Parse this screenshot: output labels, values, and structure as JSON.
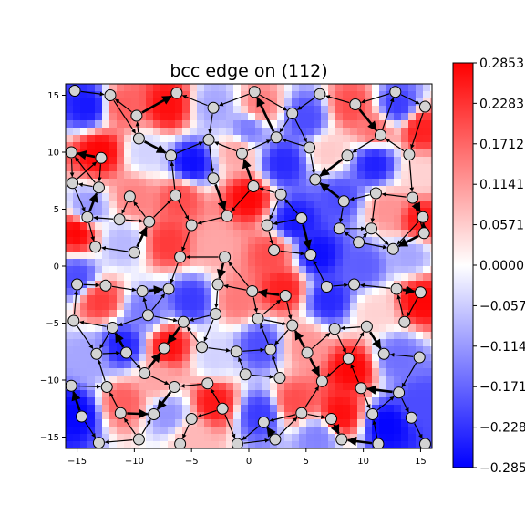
{
  "chart_data": {
    "type": "heatmap",
    "title": "bcc edge on (112)",
    "xlabel": "",
    "ylabel": "",
    "xlim": [
      -16,
      16
    ],
    "ylim": [
      -16,
      16
    ],
    "x_ticks": [
      -15,
      -10,
      -5,
      0,
      5,
      10,
      15
    ],
    "x_tick_labels": [
      "−15",
      "−10",
      "−5",
      "0",
      "5",
      "10",
      "15"
    ],
    "y_ticks": [
      15,
      10,
      5,
      0,
      -5,
      -10,
      -15
    ],
    "y_tick_labels": [
      "15",
      "10",
      "5",
      "0",
      "−5",
      "−10",
      "−15"
    ],
    "colorbar": {
      "cmap": "bwr",
      "vmin": -0.2853,
      "vmax": 0.2853,
      "ticks": [
        0.2853,
        0.2283,
        0.1712,
        0.1141,
        0.0571,
        0.0,
        -0.0571,
        -0.1141,
        -0.1712,
        -0.2283,
        -0.2853
      ],
      "tick_labels": [
        "0.2853",
        "0.2283",
        "0.1712",
        "0.1141",
        "0.0571",
        "0.0000",
        "−0.0571",
        "−0.1141",
        "−0.1712",
        "−0.2283",
        "−0.2853"
      ]
    },
    "colors": {
      "positive": "#ff0000",
      "zero": "#ffffff",
      "negative": "#0000ff",
      "atom_fill": "#d3d3d3",
      "atom_edge": "#000000"
    },
    "grid": false,
    "field_samples": [
      {
        "x": -14,
        "y": 14,
        "v": -0.26
      },
      {
        "x": -11,
        "y": 14,
        "v": 0.18
      },
      {
        "x": -7,
        "y": 14,
        "v": 0.27
      },
      {
        "x": -3,
        "y": 14,
        "v": -0.1
      },
      {
        "x": 1,
        "y": 14,
        "v": 0.15
      },
      {
        "x": 5,
        "y": 13,
        "v": -0.2
      },
      {
        "x": 9,
        "y": 14,
        "v": 0.2
      },
      {
        "x": 13,
        "y": 14,
        "v": -0.22
      },
      {
        "x": 15,
        "y": 12,
        "v": 0.25
      },
      {
        "x": -13,
        "y": 10,
        "v": 0.28
      },
      {
        "x": -9,
        "y": 10,
        "v": -0.05
      },
      {
        "x": -5,
        "y": 9,
        "v": -0.27
      },
      {
        "x": -1,
        "y": 10,
        "v": 0.1
      },
      {
        "x": 3,
        "y": 9,
        "v": -0.24
      },
      {
        "x": 7,
        "y": 10,
        "v": 0.06
      },
      {
        "x": 11,
        "y": 9,
        "v": -0.25
      },
      {
        "x": 15,
        "y": 8,
        "v": 0.05
      },
      {
        "x": -14,
        "y": 5,
        "v": -0.12
      },
      {
        "x": -10,
        "y": 6,
        "v": 0.14
      },
      {
        "x": -6,
        "y": 6,
        "v": 0.2
      },
      {
        "x": 0,
        "y": 6,
        "v": 0.28
      },
      {
        "x": 4,
        "y": 4,
        "v": -0.26
      },
      {
        "x": 8,
        "y": 6,
        "v": -0.2
      },
      {
        "x": 12,
        "y": 5,
        "v": 0.12
      },
      {
        "x": 15,
        "y": 4,
        "v": 0.26
      },
      {
        "x": -15,
        "y": 3,
        "v": 0.28
      },
      {
        "x": -11,
        "y": 2,
        "v": -0.08
      },
      {
        "x": -7,
        "y": 2,
        "v": 0.22
      },
      {
        "x": -3,
        "y": 2,
        "v": 0.1
      },
      {
        "x": 2,
        "y": 1,
        "v": 0.2
      },
      {
        "x": 6,
        "y": 1,
        "v": -0.27
      },
      {
        "x": 10,
        "y": 0,
        "v": -0.18
      },
      {
        "x": 14,
        "y": 1,
        "v": -0.1
      },
      {
        "x": -13,
        "y": -3,
        "v": 0.22
      },
      {
        "x": -9,
        "y": -4,
        "v": -0.15
      },
      {
        "x": -5,
        "y": -3,
        "v": -0.22
      },
      {
        "x": -1,
        "y": -3,
        "v": 0.15
      },
      {
        "x": 3,
        "y": -2,
        "v": 0.25
      },
      {
        "x": 7,
        "y": -3,
        "v": -0.24
      },
      {
        "x": 11,
        "y": -4,
        "v": 0.05
      },
      {
        "x": 15,
        "y": -3,
        "v": 0.28
      },
      {
        "x": -14,
        "y": -8,
        "v": -0.1
      },
      {
        "x": -11,
        "y": -7,
        "v": -0.25
      },
      {
        "x": -7,
        "y": -7,
        "v": 0.27
      },
      {
        "x": -3,
        "y": -8,
        "v": -0.05
      },
      {
        "x": 1,
        "y": -7,
        "v": -0.2
      },
      {
        "x": 5,
        "y": -7,
        "v": 0.12
      },
      {
        "x": 9,
        "y": -9,
        "v": 0.28
      },
      {
        "x": 13,
        "y": -8,
        "v": -0.16
      },
      {
        "x": -15,
        "y": -13,
        "v": -0.28
      },
      {
        "x": -11,
        "y": -12,
        "v": 0.18
      },
      {
        "x": -7,
        "y": -13,
        "v": -0.12
      },
      {
        "x": -3,
        "y": -12,
        "v": 0.26
      },
      {
        "x": 1,
        "y": -13,
        "v": -0.22
      },
      {
        "x": 4,
        "y": -12,
        "v": 0.2
      },
      {
        "x": 8,
        "y": -13,
        "v": 0.27
      },
      {
        "x": 12,
        "y": -14,
        "v": -0.28
      },
      {
        "x": 15,
        "y": -12,
        "v": -0.2
      },
      {
        "x": -5,
        "y": -15,
        "v": 0.08
      },
      {
        "x": 6,
        "y": -15,
        "v": -0.14
      },
      {
        "x": -15,
        "y": -1,
        "v": -0.2
      },
      {
        "x": 0,
        "y": 12,
        "v": -0.15
      },
      {
        "x": 11,
        "y": 12,
        "v": 0.16
      },
      {
        "x": -8,
        "y": -10,
        "v": 0.1
      }
    ],
    "atoms": [
      [
        -15.2,
        15.4
      ],
      [
        -12.1,
        15.0
      ],
      [
        -9.8,
        13.2
      ],
      [
        -6.3,
        15.2
      ],
      [
        -3.1,
        13.9
      ],
      [
        0.5,
        15.3
      ],
      [
        3.8,
        13.4
      ],
      [
        6.2,
        15.1
      ],
      [
        9.3,
        14.2
      ],
      [
        12.8,
        15.3
      ],
      [
        15.4,
        14.0
      ],
      [
        -15.5,
        10.0
      ],
      [
        -12.9,
        9.5
      ],
      [
        -9.6,
        11.2
      ],
      [
        -6.8,
        9.7
      ],
      [
        -3.5,
        11.1
      ],
      [
        -0.6,
        9.9
      ],
      [
        2.4,
        11.3
      ],
      [
        5.3,
        10.4
      ],
      [
        8.6,
        9.7
      ],
      [
        11.5,
        11.5
      ],
      [
        14.0,
        9.8
      ],
      [
        -15.4,
        7.3
      ],
      [
        -13.1,
        6.9
      ],
      [
        -10.4,
        6.1
      ],
      [
        -6.4,
        6.2
      ],
      [
        -3.1,
        7.7
      ],
      [
        0.4,
        7.0
      ],
      [
        2.8,
        6.3
      ],
      [
        5.8,
        7.6
      ],
      [
        8.3,
        5.7
      ],
      [
        11.1,
        6.4
      ],
      [
        14.3,
        6.0
      ],
      [
        -14.1,
        4.3
      ],
      [
        -11.3,
        4.1
      ],
      [
        -8.7,
        3.9
      ],
      [
        -5.0,
        3.6
      ],
      [
        -1.9,
        4.4
      ],
      [
        1.6,
        3.6
      ],
      [
        4.6,
        4.2
      ],
      [
        7.9,
        3.3
      ],
      [
        10.7,
        3.3
      ],
      [
        15.2,
        4.3
      ],
      [
        -13.4,
        1.7
      ],
      [
        -10.0,
        1.2
      ],
      [
        -6.0,
        0.8
      ],
      [
        -2.1,
        0.8
      ],
      [
        2.2,
        1.4
      ],
      [
        5.4,
        1.0
      ],
      [
        9.6,
        2.1
      ],
      [
        12.6,
        1.5
      ],
      [
        15.3,
        2.9
      ],
      [
        -15.0,
        -1.6
      ],
      [
        -12.5,
        -1.7
      ],
      [
        -9.3,
        -2.2
      ],
      [
        -7.0,
        -2.0
      ],
      [
        -2.7,
        -1.6
      ],
      [
        0.3,
        -2.2
      ],
      [
        3.2,
        -2.6
      ],
      [
        6.8,
        -1.8
      ],
      [
        9.2,
        -1.6
      ],
      [
        12.9,
        -2.0
      ],
      [
        15.0,
        -2.3
      ],
      [
        -15.3,
        -4.8
      ],
      [
        -11.9,
        -5.4
      ],
      [
        -8.8,
        -4.3
      ],
      [
        -5.7,
        -4.9
      ],
      [
        -2.9,
        -4.2
      ],
      [
        0.8,
        -4.6
      ],
      [
        3.8,
        -5.2
      ],
      [
        7.5,
        -5.5
      ],
      [
        10.3,
        -5.3
      ],
      [
        13.6,
        -4.9
      ],
      [
        -13.3,
        -7.7
      ],
      [
        -10.7,
        -7.6
      ],
      [
        -7.4,
        -7.2
      ],
      [
        -4.1,
        -7.1
      ],
      [
        -1.1,
        -7.5
      ],
      [
        1.9,
        -7.3
      ],
      [
        5.1,
        -7.6
      ],
      [
        8.7,
        -8.1
      ],
      [
        11.8,
        -7.7
      ],
      [
        14.9,
        -8.0
      ],
      [
        -15.5,
        -10.5
      ],
      [
        -12.4,
        -10.6
      ],
      [
        -9.1,
        -9.4
      ],
      [
        -6.5,
        -10.6
      ],
      [
        -3.6,
        -10.3
      ],
      [
        -0.3,
        -9.5
      ],
      [
        2.7,
        -9.8
      ],
      [
        6.4,
        -10.1
      ],
      [
        9.8,
        -10.7
      ],
      [
        13.1,
        -11.1
      ],
      [
        -14.6,
        -13.2
      ],
      [
        -11.2,
        -12.9
      ],
      [
        -8.3,
        -13.0
      ],
      [
        -5.0,
        -13.4
      ],
      [
        -2.3,
        -12.5
      ],
      [
        1.3,
        -13.7
      ],
      [
        4.6,
        -12.9
      ],
      [
        7.2,
        -13.4
      ],
      [
        10.8,
        -13.0
      ],
      [
        14.2,
        -13.3
      ],
      [
        -13.1,
        -15.5
      ],
      [
        -9.6,
        -15.2
      ],
      [
        -6.0,
        -15.6
      ],
      [
        -1.0,
        -15.6
      ],
      [
        2.3,
        -15.2
      ],
      [
        8.1,
        -15.2
      ],
      [
        11.3,
        -15.6
      ],
      [
        15.4,
        -15.6
      ]
    ]
  }
}
